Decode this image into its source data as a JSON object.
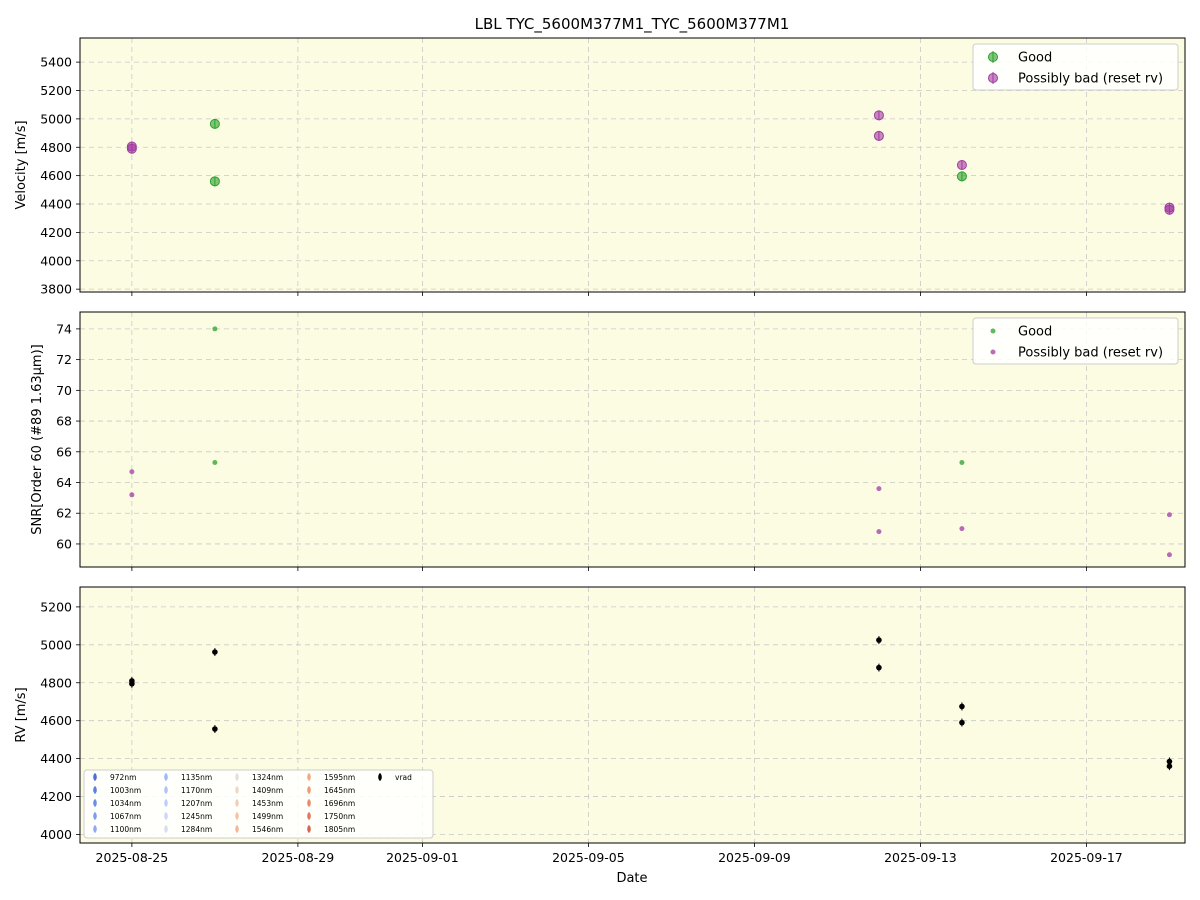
{
  "chart_data": {
    "type": "scatter",
    "title": "LBL TYC_5600M377M1_TYC_5600M377M1",
    "xlabel": "Date",
    "x_ticks": [
      "2025-08-25",
      "2025-08-29",
      "2025-09-01",
      "2025-09-05",
      "2025-09-09",
      "2025-09-13",
      "2025-09-17"
    ],
    "x_range": [
      "2025-08-23T18:00",
      "2025-09-19T09:00"
    ],
    "colors": {
      "good": "#2ca02c",
      "bad": "#a23ba2",
      "vrad": "#000000",
      "panel_bg": "#fcfce3",
      "grid": "#c8c8c8"
    },
    "panels": [
      {
        "ylabel": "Velocity [m/s]",
        "ylim": [
          3780,
          5570
        ],
        "yticks": [
          "3800",
          "4000",
          "4200",
          "4400",
          "4600",
          "4800",
          "5000",
          "5200",
          "5400"
        ],
        "legend": {
          "position": "top-right",
          "labels": [
            "Good",
            "Possibly bad (reset rv)"
          ]
        },
        "series": [
          {
            "name": "Good",
            "points": [
              [
                "2025-08-27",
                4965
              ],
              [
                "2025-08-27",
                4560
              ],
              [
                "2025-09-14",
                4595
              ]
            ]
          },
          {
            "name": "Possibly bad (reset rv)",
            "points": [
              [
                "2025-08-25",
                4805
              ],
              [
                "2025-08-25",
                4790
              ],
              [
                "2025-09-12",
                5025
              ],
              [
                "2025-09-12",
                4880
              ],
              [
                "2025-09-14",
                4675
              ],
              [
                "2025-09-19",
                4375
              ],
              [
                "2025-09-19",
                4360
              ]
            ]
          }
        ]
      },
      {
        "ylabel": "SNR[Order 60 (#89 1.63μm)]",
        "ylim": [
          58.5,
          75.1
        ],
        "yticks": [
          "60",
          "62",
          "64",
          "66",
          "68",
          "70",
          "72",
          "74"
        ],
        "legend": {
          "position": "top-right",
          "labels": [
            "Good",
            "Possibly bad (reset rv)"
          ]
        },
        "series": [
          {
            "name": "Good",
            "points": [
              [
                "2025-08-27",
                74.0
              ],
              [
                "2025-08-27",
                65.3
              ],
              [
                "2025-09-14",
                65.3
              ]
            ]
          },
          {
            "name": "Possibly bad (reset rv)",
            "points": [
              [
                "2025-08-25",
                64.7
              ],
              [
                "2025-08-25",
                63.2
              ],
              [
                "2025-09-12",
                63.6
              ],
              [
                "2025-09-12",
                60.8
              ],
              [
                "2025-09-14",
                61.0
              ],
              [
                "2025-09-19",
                61.9
              ],
              [
                "2025-09-19",
                59.3
              ]
            ]
          }
        ]
      },
      {
        "ylabel": "RV [m/s]",
        "ylim": [
          3955,
          5305
        ],
        "yticks": [
          "4000",
          "4200",
          "4400",
          "4600",
          "4800",
          "5000",
          "5200"
        ],
        "legend": {
          "position": "bottom-left",
          "labels": [
            "972nm",
            "1003nm",
            "1034nm",
            "1067nm",
            "1100nm",
            "1135nm",
            "1170nm",
            "1207nm",
            "1245nm",
            "1284nm",
            "1324nm",
            "1409nm",
            "1453nm",
            "1499nm",
            "1546nm",
            "1595nm",
            "1645nm",
            "1696nm",
            "1750nm",
            "1805nm",
            "vrad"
          ],
          "colors": [
            "#4a6fd6",
            "#5a7fe0",
            "#6b8eea",
            "#7c9cf0",
            "#8eaaf5",
            "#9fb7f8",
            "#afc3fa",
            "#bfcdfb",
            "#cdd6f8",
            "#dadcee",
            "#e4dfe0",
            "#ecd9c9",
            "#f0d0b9",
            "#f3c5a6",
            "#f4b896",
            "#f3a985",
            "#f09a76",
            "#ea8a68",
            "#e2775b",
            "#d8664f",
            "#000000"
          ]
        },
        "series": [
          {
            "name": "vrad",
            "points": [
              [
                "2025-08-25",
                4810
              ],
              [
                "2025-08-25",
                4795
              ],
              [
                "2025-08-27",
                4962
              ],
              [
                "2025-08-27",
                4556
              ],
              [
                "2025-09-12",
                5025
              ],
              [
                "2025-09-12",
                4880
              ],
              [
                "2025-09-14",
                4675
              ],
              [
                "2025-09-14",
                4590
              ],
              [
                "2025-09-19",
                4385
              ],
              [
                "2025-09-19",
                4360
              ]
            ]
          }
        ]
      }
    ]
  }
}
